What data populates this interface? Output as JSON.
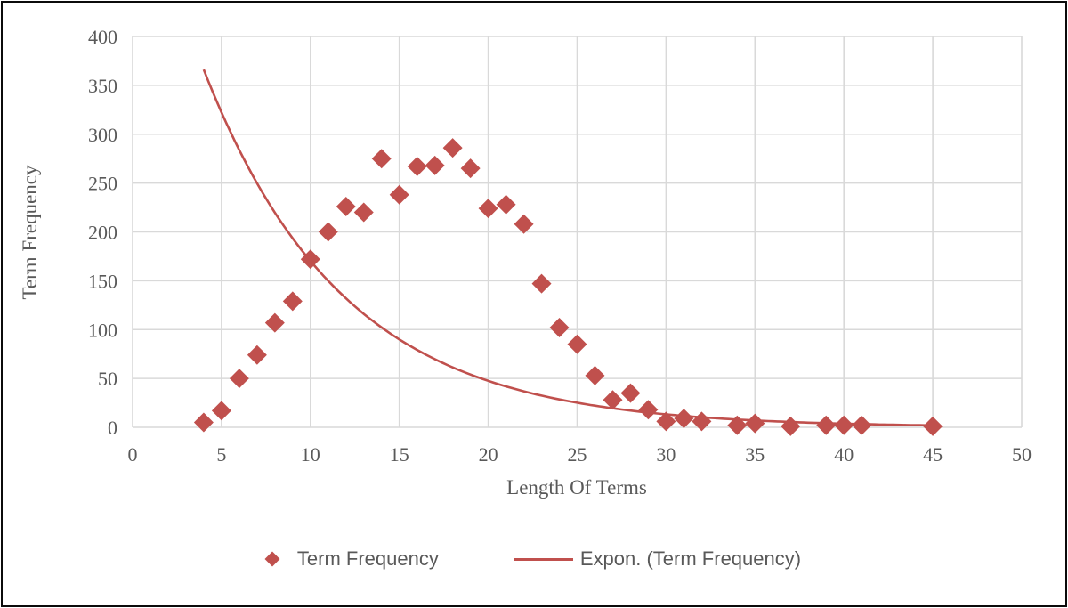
{
  "colors": {
    "series_red": "#c0504d",
    "gridline": "#d9d9d9",
    "axis_text": "#595959",
    "frame_border": "#0b0b0b",
    "background": "#ffffff"
  },
  "legend": {
    "items": [
      {
        "label": "Term Frequency",
        "swatch": "diamond-marker"
      },
      {
        "label": "Expon. (Term Frequency)",
        "swatch": "trend-line"
      }
    ]
  },
  "chart_data": {
    "type": "scatter",
    "title": "",
    "xlabel": "Length Of Terms",
    "ylabel": "Term Frequency",
    "xlim": [
      0,
      50
    ],
    "ylim": [
      0,
      400
    ],
    "x_ticks": [
      0,
      5,
      10,
      15,
      20,
      25,
      30,
      35,
      40,
      45,
      50
    ],
    "y_ticks": [
      0,
      50,
      100,
      150,
      200,
      250,
      300,
      350,
      400
    ],
    "grid": true,
    "legend_position": "bottom",
    "series": [
      {
        "name": "Term Frequency",
        "marker": "diamond",
        "color": "#c0504d",
        "points": [
          [
            4,
            5
          ],
          [
            5,
            17
          ],
          [
            6,
            50
          ],
          [
            7,
            74
          ],
          [
            8,
            107
          ],
          [
            9,
            129
          ],
          [
            10,
            172
          ],
          [
            11,
            200
          ],
          [
            12,
            226
          ],
          [
            13,
            220
          ],
          [
            14,
            275
          ],
          [
            15,
            238
          ],
          [
            16,
            267
          ],
          [
            17,
            268
          ],
          [
            18,
            286
          ],
          [
            19,
            265
          ],
          [
            20,
            224
          ],
          [
            21,
            228
          ],
          [
            22,
            208
          ],
          [
            23,
            147
          ],
          [
            24,
            102
          ],
          [
            25,
            85
          ],
          [
            26,
            53
          ],
          [
            27,
            28
          ],
          [
            28,
            35
          ],
          [
            29,
            18
          ],
          [
            30,
            6
          ],
          [
            31,
            9
          ],
          [
            32,
            6
          ],
          [
            34,
            2
          ],
          [
            35,
            4
          ],
          [
            37,
            1
          ],
          [
            39,
            2
          ],
          [
            40,
            2
          ],
          [
            41,
            2
          ],
          [
            45,
            1
          ]
        ]
      }
    ],
    "trendline": {
      "name": "Expon. (Term Frequency)",
      "type": "exponential",
      "color": "#c0504d",
      "a": 610,
      "b": -0.1276,
      "x_start": 4,
      "x_end": 45
    }
  }
}
